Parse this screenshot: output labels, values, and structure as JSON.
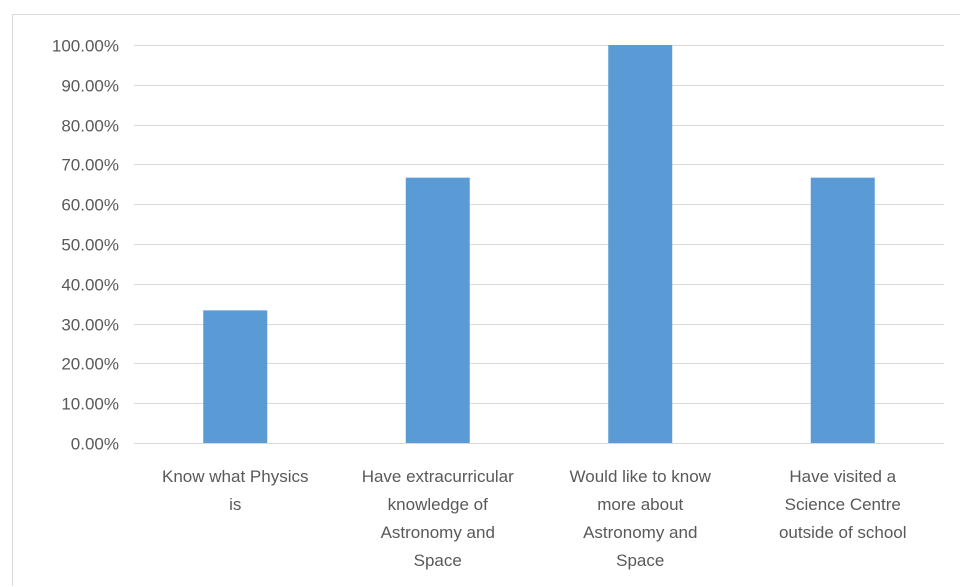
{
  "chart_data": {
    "type": "bar",
    "title": "",
    "xlabel": "",
    "ylabel": "",
    "categories": [
      [
        "Know what Physics",
        "is"
      ],
      [
        "Have extracurricular",
        "knowledge of",
        "Astronomy and",
        "Space"
      ],
      [
        "Would like to know",
        "more about",
        "Astronomy and",
        "Space"
      ],
      [
        "Have visited a",
        "Science Centre",
        "outside of school"
      ]
    ],
    "values": [
      0.3333,
      0.6667,
      1.0,
      0.6667
    ],
    "ylim": [
      0,
      1
    ],
    "yticks": [
      0,
      0.1,
      0.2,
      0.3,
      0.4,
      0.5,
      0.6,
      0.7,
      0.8,
      0.9,
      1.0
    ],
    "ytick_labels": [
      "0.00%",
      "10.00%",
      "20.00%",
      "30.00%",
      "40.00%",
      "50.00%",
      "60.00%",
      "70.00%",
      "80.00%",
      "90.00%",
      "100.00%"
    ],
    "grid": true,
    "legend": "none",
    "bar_color": "#5b9bd5",
    "grid_color": "#d9d9d9",
    "text_color": "#595959"
  }
}
